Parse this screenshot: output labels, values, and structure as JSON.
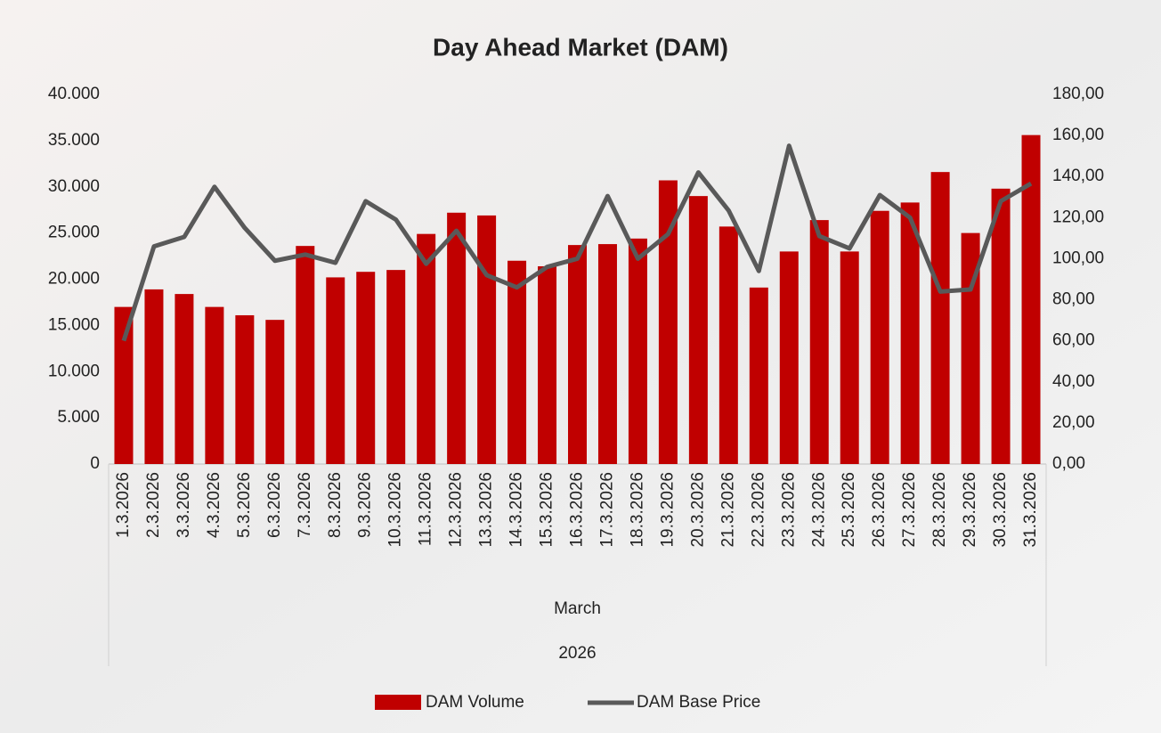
{
  "chart_data": {
    "type": "bar",
    "title": "Day Ahead Market (DAM)",
    "categories": [
      "1.3.2026",
      "2.3.2026",
      "3.3.2026",
      "4.3.2026",
      "5.3.2026",
      "6.3.2026",
      "7.3.2026",
      "8.3.2026",
      "9.3.2026",
      "10.3.2026",
      "11.3.2026",
      "12.3.2026",
      "13.3.2026",
      "14.3.2026",
      "15.3.2026",
      "16.3.2026",
      "17.3.2026",
      "18.3.2026",
      "19.3.2026",
      "20.3.2026",
      "21.3.2026",
      "22.3.2026",
      "23.3.2026",
      "24.3.2026",
      "25.3.2026",
      "26.3.2026",
      "27.3.2026",
      "28.3.2026",
      "29.3.2026",
      "30.3.2026",
      "31.3.2026"
    ],
    "x_group_labels": [
      "March",
      "2026"
    ],
    "series": [
      {
        "name": "DAM Volume",
        "type": "bar",
        "color": "#c00000",
        "values": [
          17000,
          18900,
          18400,
          17000,
          16100,
          15600,
          23600,
          20200,
          20800,
          21000,
          24900,
          27200,
          26900,
          22000,
          21400,
          23700,
          23800,
          24400,
          30700,
          29000,
          25700,
          19100,
          23000,
          26400,
          23000,
          27400,
          28300,
          31600,
          25000,
          29800,
          35600
        ]
      },
      {
        "name": "DAM Base Price",
        "type": "line",
        "axis": "y2",
        "color": "#595959",
        "values": [
          60,
          106,
          110.6,
          135,
          115,
          99,
          102,
          98,
          128,
          119,
          97.5,
          113.6,
          92,
          86,
          96,
          100,
          130.5,
          100,
          112,
          142,
          123.5,
          94,
          155,
          111,
          105,
          131,
          120,
          84,
          85,
          128,
          136.6
        ]
      }
    ],
    "ylim": [
      0,
      40000
    ],
    "yticks": [
      0,
      {
        "value": 5000,
        "label": "5.000"
      },
      {
        "value": 10000,
        "label": "10.000"
      },
      {
        "value": 15000,
        "label": "15.000"
      },
      {
        "value": 20000,
        "label": "20.000"
      },
      {
        "value": 25000,
        "label": "25.000"
      },
      {
        "value": 30000,
        "label": "30.000"
      },
      {
        "value": 35000,
        "label": "35.000"
      },
      {
        "value": 40000,
        "label": "40.000"
      }
    ],
    "y2lim": [
      0,
      180
    ],
    "y2ticks": [
      {
        "value": 0,
        "label": "0,00"
      },
      {
        "value": 20,
        "label": "20,00"
      },
      {
        "value": 40,
        "label": "40,00"
      },
      {
        "value": 60,
        "label": "60,00"
      },
      {
        "value": 80,
        "label": "80,00"
      },
      {
        "value": 100,
        "label": "100,00"
      },
      {
        "value": 120,
        "label": "120,00"
      },
      {
        "value": 140,
        "label": "140,00"
      },
      {
        "value": 160,
        "label": "160,00"
      },
      {
        "value": 180,
        "label": "180,00"
      }
    ],
    "legend": "bottom"
  }
}
